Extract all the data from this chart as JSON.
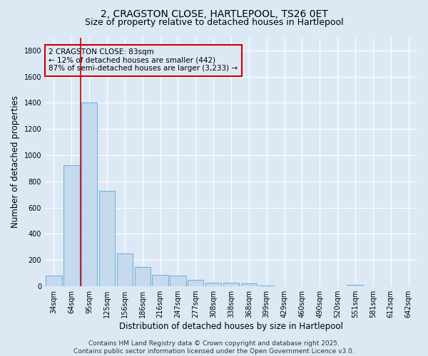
{
  "title1": "2, CRAGSTON CLOSE, HARTLEPOOL, TS26 0ET",
  "title2": "Size of property relative to detached houses in Hartlepool",
  "xlabel": "Distribution of detached houses by size in Hartlepool",
  "ylabel": "Number of detached properties",
  "categories": [
    "34sqm",
    "64sqm",
    "95sqm",
    "125sqm",
    "156sqm",
    "186sqm",
    "216sqm",
    "247sqm",
    "277sqm",
    "308sqm",
    "338sqm",
    "368sqm",
    "399sqm",
    "429sqm",
    "460sqm",
    "490sqm",
    "520sqm",
    "551sqm",
    "581sqm",
    "612sqm",
    "642sqm"
  ],
  "values": [
    80,
    925,
    1400,
    730,
    250,
    145,
    90,
    80,
    50,
    30,
    28,
    20,
    5,
    0,
    0,
    0,
    0,
    10,
    0,
    0,
    0
  ],
  "bar_color": "#c5d9ef",
  "bar_edge_color": "#6baed6",
  "vline_x_index": 1.5,
  "vline_color": "#cc0000",
  "annotation_text": "2 CRAGSTON CLOSE: 83sqm\n← 12% of detached houses are smaller (442)\n87% of semi-detached houses are larger (3,233) →",
  "annotation_box_color": "#cc0000",
  "ylim": [
    0,
    1900
  ],
  "yticks": [
    0,
    200,
    400,
    600,
    800,
    1000,
    1200,
    1400,
    1600,
    1800
  ],
  "bg_color": "#dce9f5",
  "grid_color": "#ffffff",
  "footer1": "Contains HM Land Registry data © Crown copyright and database right 2025.",
  "footer2": "Contains public sector information licensed under the Open Government Licence v3.0.",
  "title1_fontsize": 10,
  "title2_fontsize": 9,
  "axis_label_fontsize": 8.5,
  "tick_fontsize": 7,
  "annotation_fontsize": 7.5,
  "footer_fontsize": 6.5
}
